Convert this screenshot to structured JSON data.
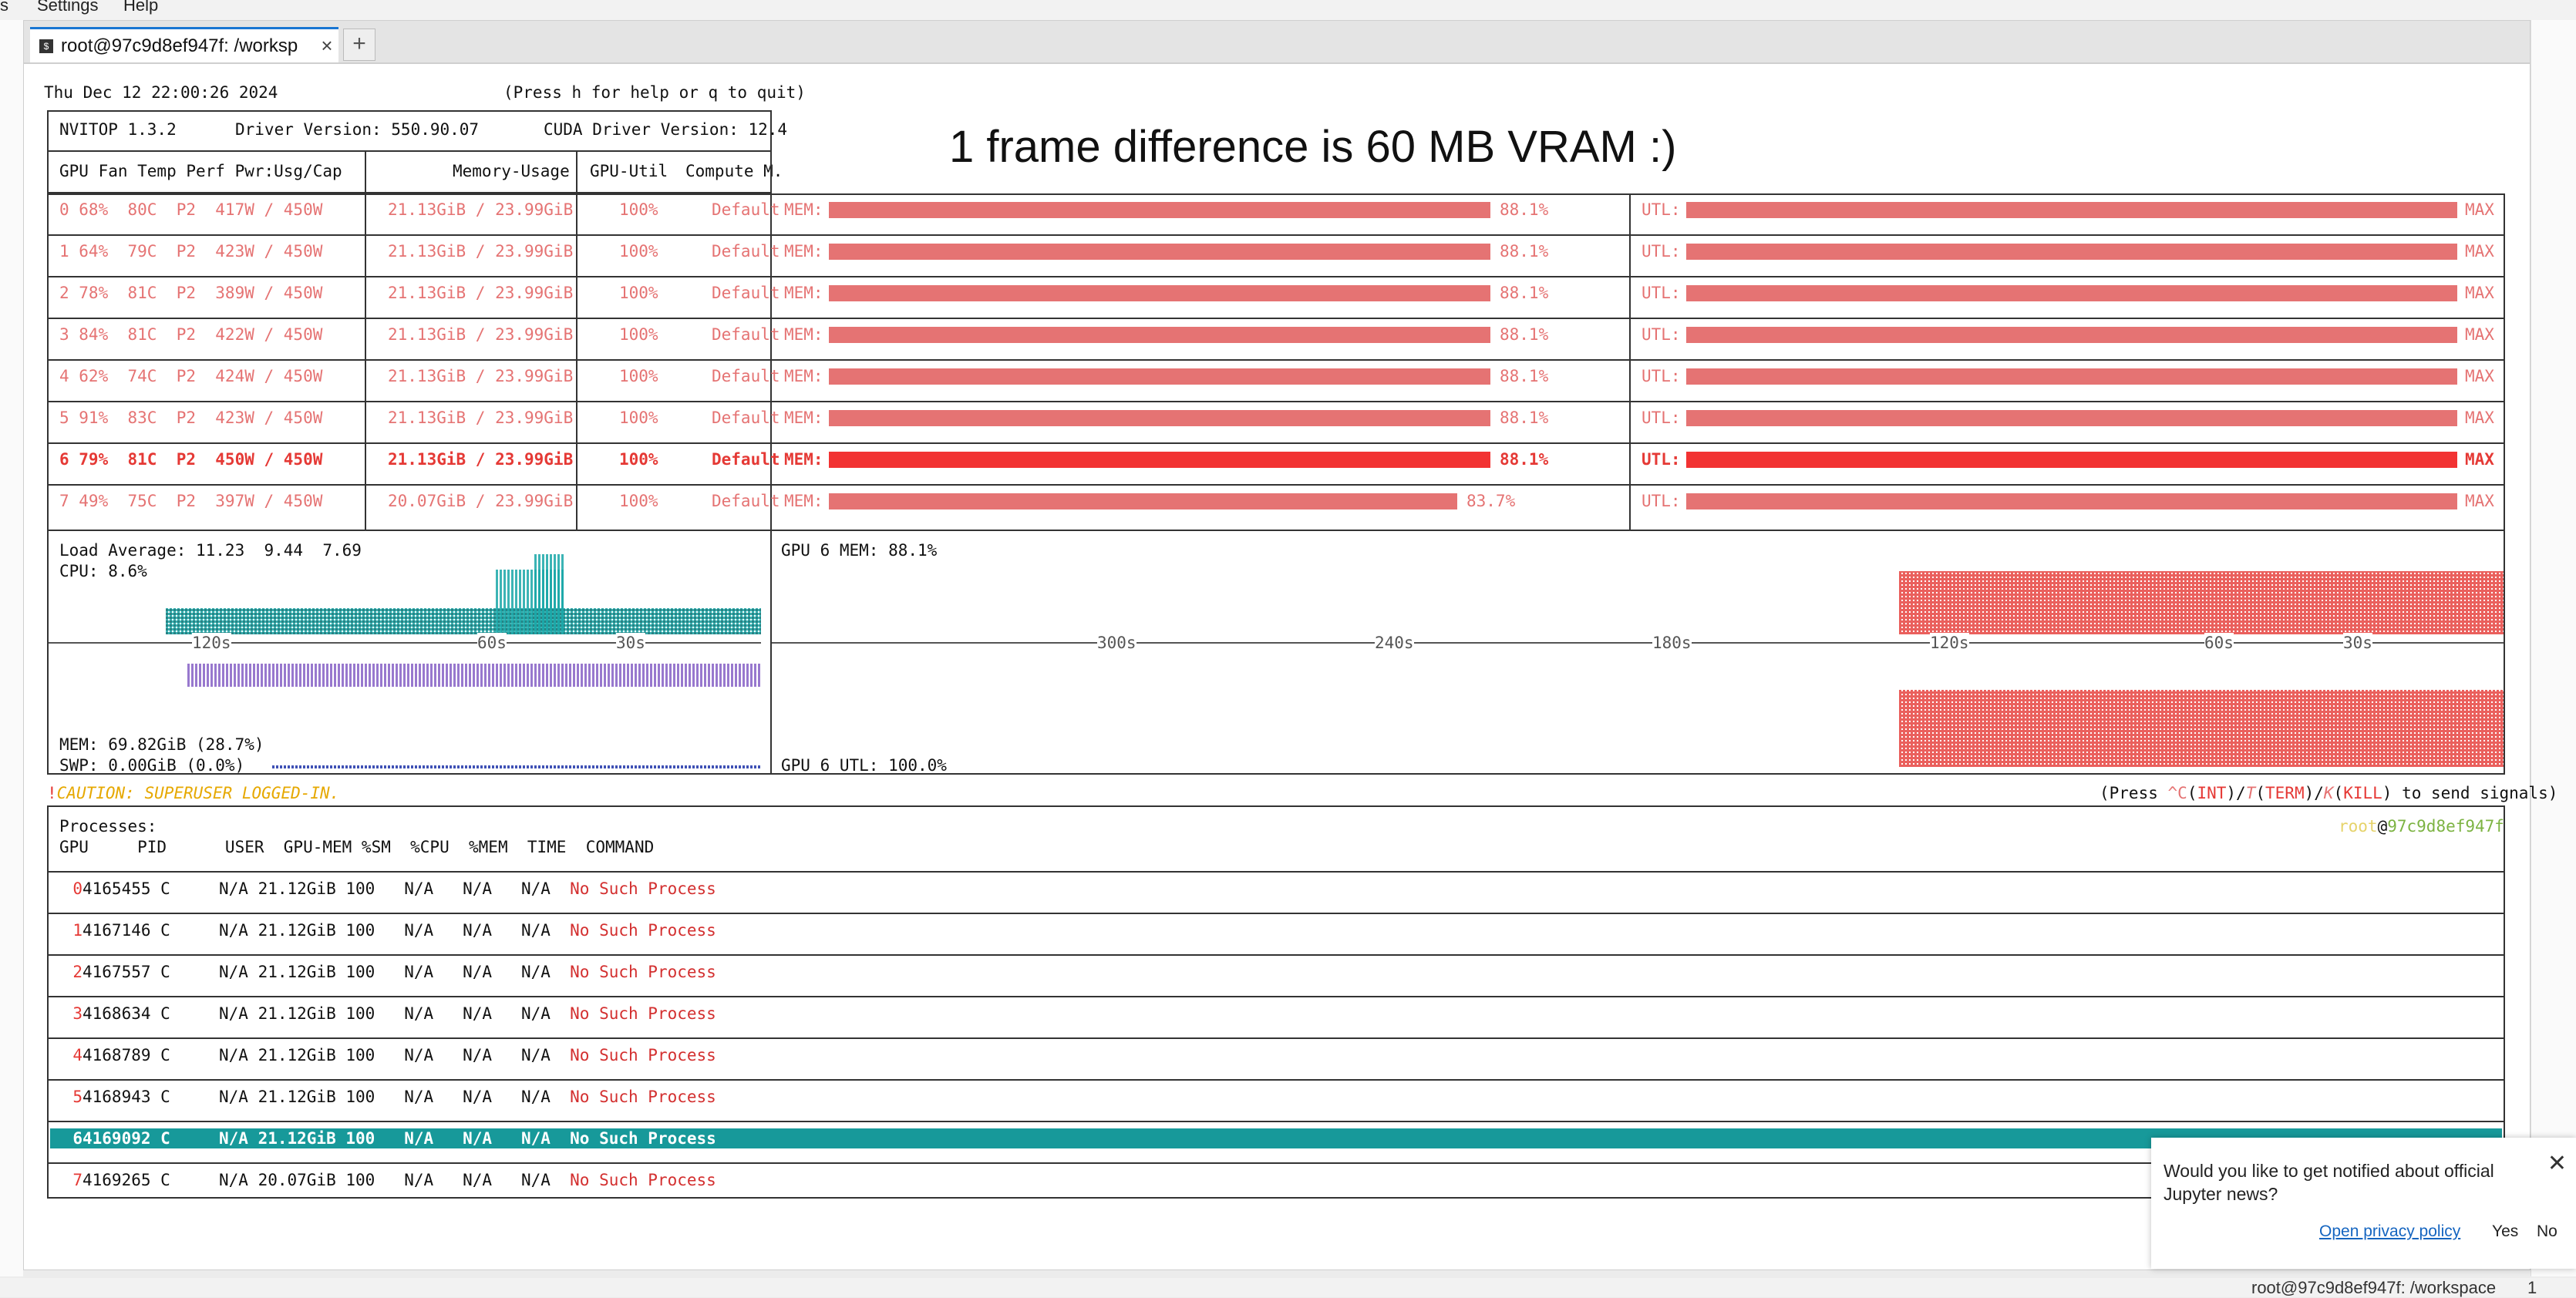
{
  "menubar": {
    "partial_left": "s",
    "settings": "Settings",
    "help": "Help"
  },
  "tab": {
    "label": "root@97c9d8ef947f: /worksp",
    "new_tab": "+"
  },
  "annotation": "1 frame difference is 60 MB VRAM :)",
  "header": {
    "datetime": "Thu Dec 12 22:00:26 2024",
    "help_hint": "(Press h for help or q to quit)",
    "version": "NVITOP 1.3.2",
    "driver": "Driver Version: 550.90.07",
    "cuda": "CUDA Driver Version: 12.4",
    "col_gpu": "GPU Fan Temp Perf Pwr:Usg/Cap",
    "col_mem": "Memory-Usage",
    "col_util": "GPU-Util",
    "col_compute": "Compute M."
  },
  "gpus": [
    {
      "info": "0 68%  80C  P2  417W / 450W",
      "mem": "21.13GiB / 23.99GiB",
      "util": "100%",
      "compute": "Default",
      "mem_label": "MEM:",
      "mem_pct": "88.1%",
      "mem_frac": 0.881,
      "utl_label": "UTL:",
      "utl_val": "MAX",
      "selected": false
    },
    {
      "info": "1 64%  79C  P2  423W / 450W",
      "mem": "21.13GiB / 23.99GiB",
      "util": "100%",
      "compute": "Default",
      "mem_label": "MEM:",
      "mem_pct": "88.1%",
      "mem_frac": 0.881,
      "utl_label": "UTL:",
      "utl_val": "MAX",
      "selected": false
    },
    {
      "info": "2 78%  81C  P2  389W / 450W",
      "mem": "21.13GiB / 23.99GiB",
      "util": "100%",
      "compute": "Default",
      "mem_label": "MEM:",
      "mem_pct": "88.1%",
      "mem_frac": 0.881,
      "utl_label": "UTL:",
      "utl_val": "MAX",
      "selected": false
    },
    {
      "info": "3 84%  81C  P2  422W / 450W",
      "mem": "21.13GiB / 23.99GiB",
      "util": "100%",
      "compute": "Default",
      "mem_label": "MEM:",
      "mem_pct": "88.1%",
      "mem_frac": 0.881,
      "utl_label": "UTL:",
      "utl_val": "MAX",
      "selected": false
    },
    {
      "info": "4 62%  74C  P2  424W / 450W",
      "mem": "21.13GiB / 23.99GiB",
      "util": "100%",
      "compute": "Default",
      "mem_label": "MEM:",
      "mem_pct": "88.1%",
      "mem_frac": 0.881,
      "utl_label": "UTL:",
      "utl_val": "MAX",
      "selected": false
    },
    {
      "info": "5 91%  83C  P2  423W / 450W",
      "mem": "21.13GiB / 23.99GiB",
      "util": "100%",
      "compute": "Default",
      "mem_label": "MEM:",
      "mem_pct": "88.1%",
      "mem_frac": 0.881,
      "utl_label": "UTL:",
      "utl_val": "MAX",
      "selected": false
    },
    {
      "info": "6 79%  81C  P2  450W / 450W",
      "mem": "21.13GiB / 23.99GiB",
      "util": "100%",
      "compute": "Default",
      "mem_label": "MEM:",
      "mem_pct": "88.1%",
      "mem_frac": 0.881,
      "utl_label": "UTL:",
      "utl_val": "MAX",
      "selected": true
    },
    {
      "info": "7 49%  75C  P2  397W / 450W",
      "mem": "20.07GiB / 23.99GiB",
      "util": "100%",
      "compute": "Default",
      "mem_label": "MEM:",
      "mem_pct": "83.7%",
      "mem_frac": 0.837,
      "utl_label": "UTL:",
      "utl_val": "MAX",
      "selected": false
    }
  ],
  "host": {
    "load": "Load Average: 11.23  9.44  7.69",
    "cpu": "CPU: 8.6%",
    "mem": "MEM: 69.82GiB (28.7%)",
    "swp": "SWP: 0.00GiB (0.0%)",
    "ticks": [
      "120s",
      "60s",
      "30s"
    ]
  },
  "gpu_graph": {
    "mem": "GPU 6 MEM: 88.1%",
    "utl": "GPU 6 UTL: 100.0%",
    "ticks": [
      "300s",
      "240s",
      "180s",
      "120s",
      "60s",
      "30s"
    ]
  },
  "caution": {
    "bang": "!",
    "text": "CAUTION: SUPERUSER LOGGED-IN."
  },
  "signals": {
    "p1": "(Press ",
    "c": "^C",
    "p2": "(",
    "int": "INT",
    "p3": ")/",
    "t": "T",
    "p4": "(",
    "term": "TERM",
    "p5": ")/",
    "k": "K",
    "p6": "(",
    "kill": "KILL",
    "p7": ") to send signals)"
  },
  "processes": {
    "title": "Processes:",
    "user": "root",
    "at": "@",
    "hostname": "97c9d8ef947f",
    "columns": "GPU     PID      USER  GPU-MEM %SM  %CPU  %MEM  TIME  COMMAND",
    "rows": [
      {
        "gpu": "0",
        "rest": "4165455 C     N/A 21.12GiB 100   N/A   N/A   N/A  ",
        "cmd": "No Such Process",
        "selected": false
      },
      {
        "gpu": "1",
        "rest": "4167146 C     N/A 21.12GiB 100   N/A   N/A   N/A  ",
        "cmd": "No Such Process",
        "selected": false
      },
      {
        "gpu": "2",
        "rest": "4167557 C     N/A 21.12GiB 100   N/A   N/A   N/A  ",
        "cmd": "No Such Process",
        "selected": false
      },
      {
        "gpu": "3",
        "rest": "4168634 C     N/A 21.12GiB 100   N/A   N/A   N/A  ",
        "cmd": "No Such Process",
        "selected": false
      },
      {
        "gpu": "4",
        "rest": "4168789 C     N/A 21.12GiB 100   N/A   N/A   N/A  ",
        "cmd": "No Such Process",
        "selected": false
      },
      {
        "gpu": "5",
        "rest": "4168943 C     N/A 21.12GiB 100   N/A   N/A   N/A  ",
        "cmd": "No Such Process",
        "selected": false
      },
      {
        "gpu": "6",
        "rest": "4169092 C     N/A 21.12GiB 100   N/A   N/A   N/A  ",
        "cmd": "No Such Process",
        "selected": true
      },
      {
        "gpu": "7",
        "rest": "4169265 C     N/A 20.07GiB 100   N/A   N/A   N/A  ",
        "cmd": "No Such Process",
        "selected": false
      }
    ]
  },
  "notification": {
    "message": "Would you like to get notified about official Jupyter news?",
    "privacy": "Open privacy policy",
    "yes": "Yes",
    "no": "No"
  },
  "statusbar": {
    "text": "root@97c9d8ef947f: /workspace",
    "count": "1"
  },
  "colors": {
    "bar": "#e57373",
    "bar_selected": "#f23232",
    "selection": "#17999a",
    "cyan_graph": "#1aa7a8",
    "purple_graph": "#7e57c2"
  }
}
